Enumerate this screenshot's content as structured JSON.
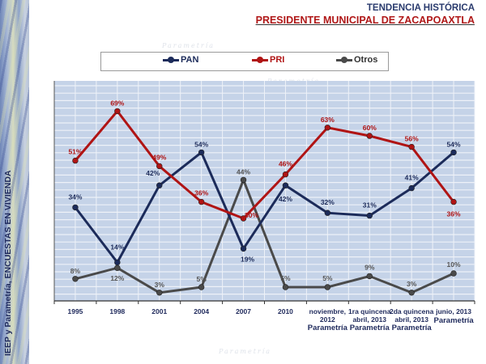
{
  "header": {
    "title": "TENDENCIA HISTÓRICA",
    "subtitle": "PRESIDENTE MUNICIPAL DE ZACAPOAXTLA"
  },
  "sidebar": {
    "vertical_text": "IEEP y Parametría,  ENCUESTAS  EN VIVIENDA"
  },
  "watermark": "Parametría",
  "chart_data": {
    "type": "line",
    "title": "TENDENCIA HISTÓRICA — PRESIDENTE MUNICIPAL DE ZACAPOAXTLA",
    "xlabel": "",
    "ylabel": "",
    "ylim": [
      0,
      80
    ],
    "grid": true,
    "legend_position": "top",
    "categories": [
      {
        "line1": "1995",
        "line2": "",
        "source": ""
      },
      {
        "line1": "1998",
        "line2": "",
        "source": ""
      },
      {
        "line1": "2001",
        "line2": "",
        "source": ""
      },
      {
        "line1": "2004",
        "line2": "",
        "source": ""
      },
      {
        "line1": "2007",
        "line2": "",
        "source": ""
      },
      {
        "line1": "2010",
        "line2": "",
        "source": ""
      },
      {
        "line1": "noviembre,",
        "line2": "2012",
        "source": "Parametría"
      },
      {
        "line1": "1ra quincena",
        "line2": "abril, 2013",
        "source": "Parametría"
      },
      {
        "line1": "2da quincena",
        "line2": "abril, 2013",
        "source": "Parametría"
      },
      {
        "line1": "junio, 2013",
        "line2": "",
        "source": "Parametría"
      }
    ],
    "series": [
      {
        "name": "PAN",
        "color": "#1c2b5a",
        "label_color": "#1c2b5a",
        "values": [
          34,
          14,
          42,
          54,
          19,
          42,
          32,
          31,
          41,
          54
        ],
        "labels": [
          "34%",
          "14%",
          "42%",
          "54%",
          "19%",
          "42%",
          "32%",
          "31%",
          "41%",
          "54%"
        ]
      },
      {
        "name": "PRI",
        "color": "#b01414",
        "label_color": "#b01414",
        "values": [
          51,
          69,
          49,
          36,
          30,
          46,
          63,
          60,
          56,
          36
        ],
        "labels": [
          "51%",
          "69%",
          "49%",
          "36%",
          "30%",
          "46%",
          "63%",
          "60%",
          "56%",
          "36%"
        ]
      },
      {
        "name": "Otros",
        "color": "#4a4a4a",
        "label_color": "#555555",
        "values": [
          8,
          12,
          3,
          5,
          44,
          5,
          5,
          9,
          3,
          10
        ],
        "labels": [
          "8%",
          "12%",
          "3%",
          "5%",
          "44%",
          "5%",
          "5%",
          "9%",
          "3%",
          "10%"
        ]
      }
    ]
  }
}
